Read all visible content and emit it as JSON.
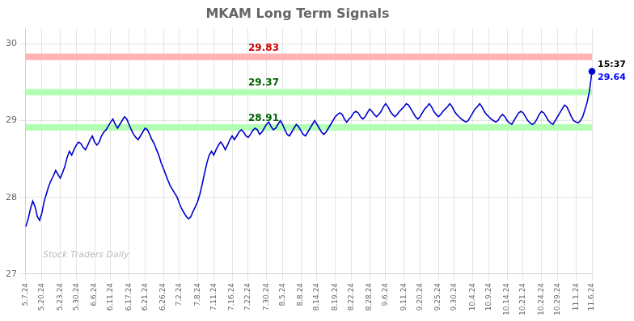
{
  "chart_data": {
    "type": "line",
    "title": "MKAM Long Term Signals",
    "categories": [
      "5.7.24",
      null,
      null,
      null,
      null,
      null,
      null,
      "5.20.24",
      null,
      null,
      null,
      null,
      null,
      null,
      null,
      "5.23.24",
      null,
      null,
      null,
      null,
      null,
      null,
      "5.30.24",
      null,
      null,
      null,
      null,
      null,
      null,
      null,
      "6.6.24",
      null,
      null,
      null,
      null,
      null,
      null,
      "6.11.24",
      null,
      null,
      null,
      null,
      null,
      null,
      null,
      "6.17.24",
      null,
      null,
      null,
      null,
      null,
      null,
      "6.21.24",
      null,
      null,
      null,
      null,
      null,
      null,
      null,
      "6.26.24",
      null,
      null,
      null,
      null,
      null,
      null,
      "7.2.24",
      null,
      null,
      null,
      null,
      null,
      null,
      null,
      "7.8.24",
      null,
      null,
      null,
      null,
      null,
      null,
      "7.11.24",
      null,
      null,
      null,
      null,
      null,
      null,
      null,
      "7.16.24",
      null,
      null,
      null,
      null,
      null,
      null,
      "7.22.24",
      null,
      null,
      null,
      null,
      null,
      null,
      null,
      "7.30.24",
      null,
      null,
      null,
      null,
      null,
      null,
      "8.5.24",
      null,
      null,
      null,
      null,
      null,
      null,
      null,
      "8.8.24",
      null,
      null,
      null,
      null,
      null,
      null,
      "8.14.24",
      null,
      null,
      null,
      null,
      null,
      null,
      null,
      "8.19.24",
      null,
      null,
      null,
      null,
      null,
      null,
      "8.22.24",
      null,
      null,
      null,
      null,
      null,
      null,
      null,
      "8.28.24",
      null,
      null,
      null,
      null,
      null,
      null,
      "9.6.24",
      null,
      null,
      null,
      null,
      null,
      null,
      null,
      "9.11.24",
      null,
      null,
      null,
      null,
      null,
      null,
      "9.20.24",
      null,
      null,
      null,
      null,
      null,
      null,
      null,
      "9.25.24",
      null,
      null,
      null,
      null,
      null,
      null,
      "9.30.24",
      null,
      null,
      null,
      null,
      null,
      null,
      null,
      "10.4.24",
      null,
      null,
      null,
      null,
      null,
      null,
      "10.9.24",
      null,
      null,
      null,
      null,
      null,
      null,
      null,
      "10.14.24",
      null,
      null,
      null,
      null,
      null,
      null,
      "10.21.24",
      null,
      null,
      null,
      null,
      null,
      null,
      null,
      "10.24.24",
      null,
      null,
      null,
      null,
      null,
      null,
      "10.29.24",
      null,
      null,
      null,
      null,
      null,
      null,
      null,
      "11.1.24",
      null,
      null,
      null,
      null,
      null,
      null,
      "11.6.24"
    ],
    "values": [
      27.62,
      27.72,
      27.85,
      27.95,
      27.88,
      27.75,
      27.7,
      27.8,
      27.95,
      28.05,
      28.15,
      28.22,
      28.28,
      28.35,
      28.3,
      28.25,
      28.32,
      28.4,
      28.52,
      28.6,
      28.55,
      28.62,
      28.68,
      28.72,
      28.7,
      28.65,
      28.62,
      28.68,
      28.75,
      28.8,
      28.72,
      28.68,
      28.72,
      28.8,
      28.85,
      28.88,
      28.93,
      28.98,
      29.02,
      28.95,
      28.9,
      28.95,
      29.0,
      29.05,
      29.02,
      28.95,
      28.88,
      28.82,
      28.78,
      28.75,
      28.8,
      28.85,
      28.9,
      28.88,
      28.82,
      28.75,
      28.7,
      28.62,
      28.55,
      28.45,
      28.38,
      28.3,
      28.22,
      28.15,
      28.1,
      28.05,
      28.0,
      27.92,
      27.85,
      27.8,
      27.75,
      27.72,
      27.75,
      27.82,
      27.88,
      27.95,
      28.05,
      28.18,
      28.32,
      28.45,
      28.55,
      28.6,
      28.55,
      28.62,
      28.68,
      28.72,
      28.68,
      28.62,
      28.68,
      28.75,
      28.8,
      28.75,
      28.8,
      28.85,
      28.88,
      28.85,
      28.8,
      28.78,
      28.82,
      28.87,
      28.9,
      28.88,
      28.82,
      28.85,
      28.9,
      28.95,
      28.98,
      28.92,
      28.88,
      28.9,
      28.95,
      29.0,
      28.95,
      28.88,
      28.82,
      28.8,
      28.85,
      28.9,
      28.95,
      28.92,
      28.87,
      28.82,
      28.8,
      28.85,
      28.9,
      28.95,
      29.0,
      28.95,
      28.9,
      28.85,
      28.82,
      28.85,
      28.9,
      28.95,
      29.0,
      29.05,
      29.08,
      29.1,
      29.08,
      29.02,
      28.98,
      29.02,
      29.05,
      29.1,
      29.12,
      29.1,
      29.05,
      29.02,
      29.05,
      29.1,
      29.15,
      29.12,
      29.08,
      29.05,
      29.08,
      29.12,
      29.18,
      29.22,
      29.18,
      29.12,
      29.08,
      29.05,
      29.08,
      29.12,
      29.15,
      29.18,
      29.22,
      29.2,
      29.15,
      29.1,
      29.05,
      29.02,
      29.05,
      29.1,
      29.15,
      29.18,
      29.22,
      29.18,
      29.12,
      29.08,
      29.05,
      29.08,
      29.12,
      29.15,
      29.18,
      29.22,
      29.18,
      29.12,
      29.08,
      29.05,
      29.02,
      29.0,
      28.98,
      29.0,
      29.05,
      29.1,
      29.15,
      29.18,
      29.22,
      29.18,
      29.12,
      29.08,
      29.05,
      29.02,
      29.0,
      28.98,
      29.0,
      29.05,
      29.08,
      29.05,
      29.0,
      28.97,
      28.95,
      29.0,
      29.05,
      29.1,
      29.12,
      29.1,
      29.05,
      29.0,
      28.97,
      28.95,
      28.97,
      29.02,
      29.08,
      29.12,
      29.1,
      29.05,
      29.0,
      28.97,
      28.95,
      29.0,
      29.05,
      29.1,
      29.15,
      29.2,
      29.18,
      29.12,
      29.05,
      29.0,
      28.98,
      28.97,
      29.0,
      29.05,
      29.15,
      29.25,
      29.4,
      29.64
    ],
    "color": "#0000cc",
    "ylim": [
      27.0,
      30.2
    ],
    "yticks": [
      27,
      28,
      29,
      30
    ],
    "grid": true,
    "reference_lines": [
      {
        "value": 29.83,
        "label": "29.83",
        "color": "#ffb3b3",
        "label_color": "#cc0000"
      },
      {
        "value": 29.37,
        "label": "29.37",
        "color": "#b3ffb3",
        "label_color": "#006600"
      },
      {
        "value": 28.91,
        "label": "28.91",
        "color": "#b3ffb3",
        "label_color": "#006600"
      }
    ],
    "last_point_annotation": {
      "time": "15:37",
      "time_color": "#000000",
      "price": "29.64",
      "price_color": "#0000ff"
    },
    "watermark": {
      "text": "Stock Traders Daily",
      "color": "#bbbbbb"
    }
  }
}
